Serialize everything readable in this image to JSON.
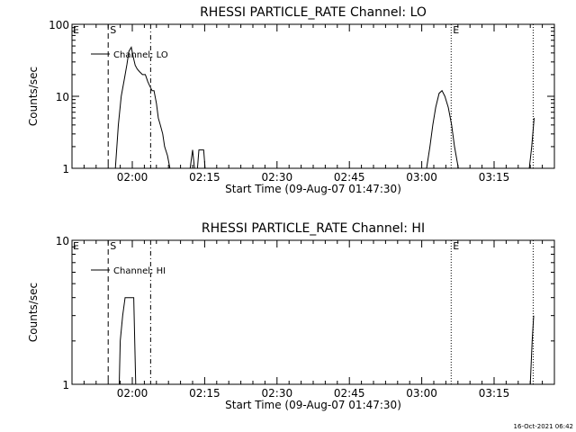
{
  "chart_data": [
    {
      "type": "line",
      "title": "RHESSI PARTICLE_RATE Channel: LO",
      "xlabel": "Start Time (09-Aug-07 01:47:30)",
      "ylabel": "Counts/sec",
      "yscale": "log",
      "ylim": [
        1,
        100
      ],
      "ytick_labels": [
        "1",
        "10",
        "100"
      ],
      "yticks": [
        1,
        10,
        100
      ],
      "xlim_minutes": [
        0,
        100
      ],
      "xtick_labels": [
        "02:00",
        "02:15",
        "02:30",
        "02:45",
        "03:00",
        "03:15"
      ],
      "xticks_minutes": [
        12.5,
        27.5,
        42.5,
        57.5,
        72.5,
        87.5
      ],
      "legend": "top-left",
      "series": [
        {
          "name": "Channel: LO",
          "segments": [
            [
              [
                9.0,
                1
              ],
              [
                9.6,
                4
              ],
              [
                10.2,
                10
              ],
              [
                10.9,
                18
              ],
              [
                11.4,
                28
              ],
              [
                11.8,
                42
              ],
              [
                12.3,
                48
              ],
              [
                12.7,
                35
              ],
              [
                13.1,
                27
              ],
              [
                13.5,
                24
              ],
              [
                14.0,
                22
              ],
              [
                14.6,
                20
              ],
              [
                15.2,
                20
              ],
              [
                15.7,
                16
              ],
              [
                16.1,
                14
              ],
              [
                16.6,
                12
              ],
              [
                17.0,
                12
              ],
              [
                17.5,
                8
              ],
              [
                17.9,
                5
              ],
              [
                18.3,
                4
              ],
              [
                18.8,
                3
              ],
              [
                19.2,
                2
              ],
              [
                19.8,
                1.5
              ],
              [
                20.3,
                1
              ]
            ],
            [
              [
                24.5,
                1
              ],
              [
                25.0,
                1.8
              ],
              [
                25.4,
                1
              ]
            ],
            [
              [
                26.0,
                1
              ],
              [
                26.3,
                1.8
              ],
              [
                27.3,
                1.8
              ],
              [
                27.6,
                1
              ]
            ],
            [
              [
                73.5,
                1
              ],
              [
                74.2,
                2
              ],
              [
                74.8,
                4
              ],
              [
                75.4,
                7
              ],
              [
                76.1,
                11
              ],
              [
                76.7,
                12
              ],
              [
                77.3,
                10
              ],
              [
                78.0,
                7
              ],
              [
                78.7,
                4
              ],
              [
                79.3,
                2
              ],
              [
                80.1,
                1
              ]
            ],
            [
              [
                94.8,
                1
              ],
              [
                95.3,
                2
              ],
              [
                95.8,
                5
              ]
            ]
          ]
        }
      ],
      "vlines": [
        {
          "x": 7.5,
          "style": "dashed",
          "label": "S"
        },
        {
          "x": 16.3,
          "style": "dashdot",
          "label": ""
        },
        {
          "x": 78.6,
          "style": "dotted",
          "label": "E"
        },
        {
          "x": 95.6,
          "style": "dotted",
          "label": ""
        }
      ],
      "corner_label": "E"
    },
    {
      "type": "line",
      "title": "RHESSI PARTICLE_RATE Channel: HI",
      "xlabel": "Start Time (09-Aug-07 01:47:30)",
      "ylabel": "Counts/sec",
      "yscale": "log",
      "ylim": [
        1,
        10
      ],
      "ytick_labels": [
        "1",
        "10"
      ],
      "yticks": [
        1,
        10
      ],
      "xlim_minutes": [
        0,
        100
      ],
      "xtick_labels": [
        "02:00",
        "02:15",
        "02:30",
        "02:45",
        "03:00",
        "03:15"
      ],
      "xticks_minutes": [
        12.5,
        27.5,
        42.5,
        57.5,
        72.5,
        87.5
      ],
      "legend": "top-left",
      "series": [
        {
          "name": "Channel: HI",
          "segments": [
            [
              [
                9.8,
                1
              ],
              [
                10.0,
                2
              ],
              [
                10.5,
                3
              ],
              [
                11.0,
                4
              ],
              [
                12.8,
                4
              ],
              [
                13.2,
                1
              ]
            ],
            [
              [
                95.0,
                1
              ],
              [
                95.4,
                2
              ],
              [
                95.7,
                3
              ]
            ]
          ]
        }
      ],
      "vlines": [
        {
          "x": 7.5,
          "style": "dashed",
          "label": "S"
        },
        {
          "x": 16.3,
          "style": "dashdot",
          "label": ""
        },
        {
          "x": 78.6,
          "style": "dotted",
          "label": "E"
        },
        {
          "x": 95.6,
          "style": "dotted",
          "label": ""
        }
      ],
      "corner_label": "E"
    }
  ],
  "footer": {
    "timestamp": "16-Oct-2021 06:42"
  }
}
